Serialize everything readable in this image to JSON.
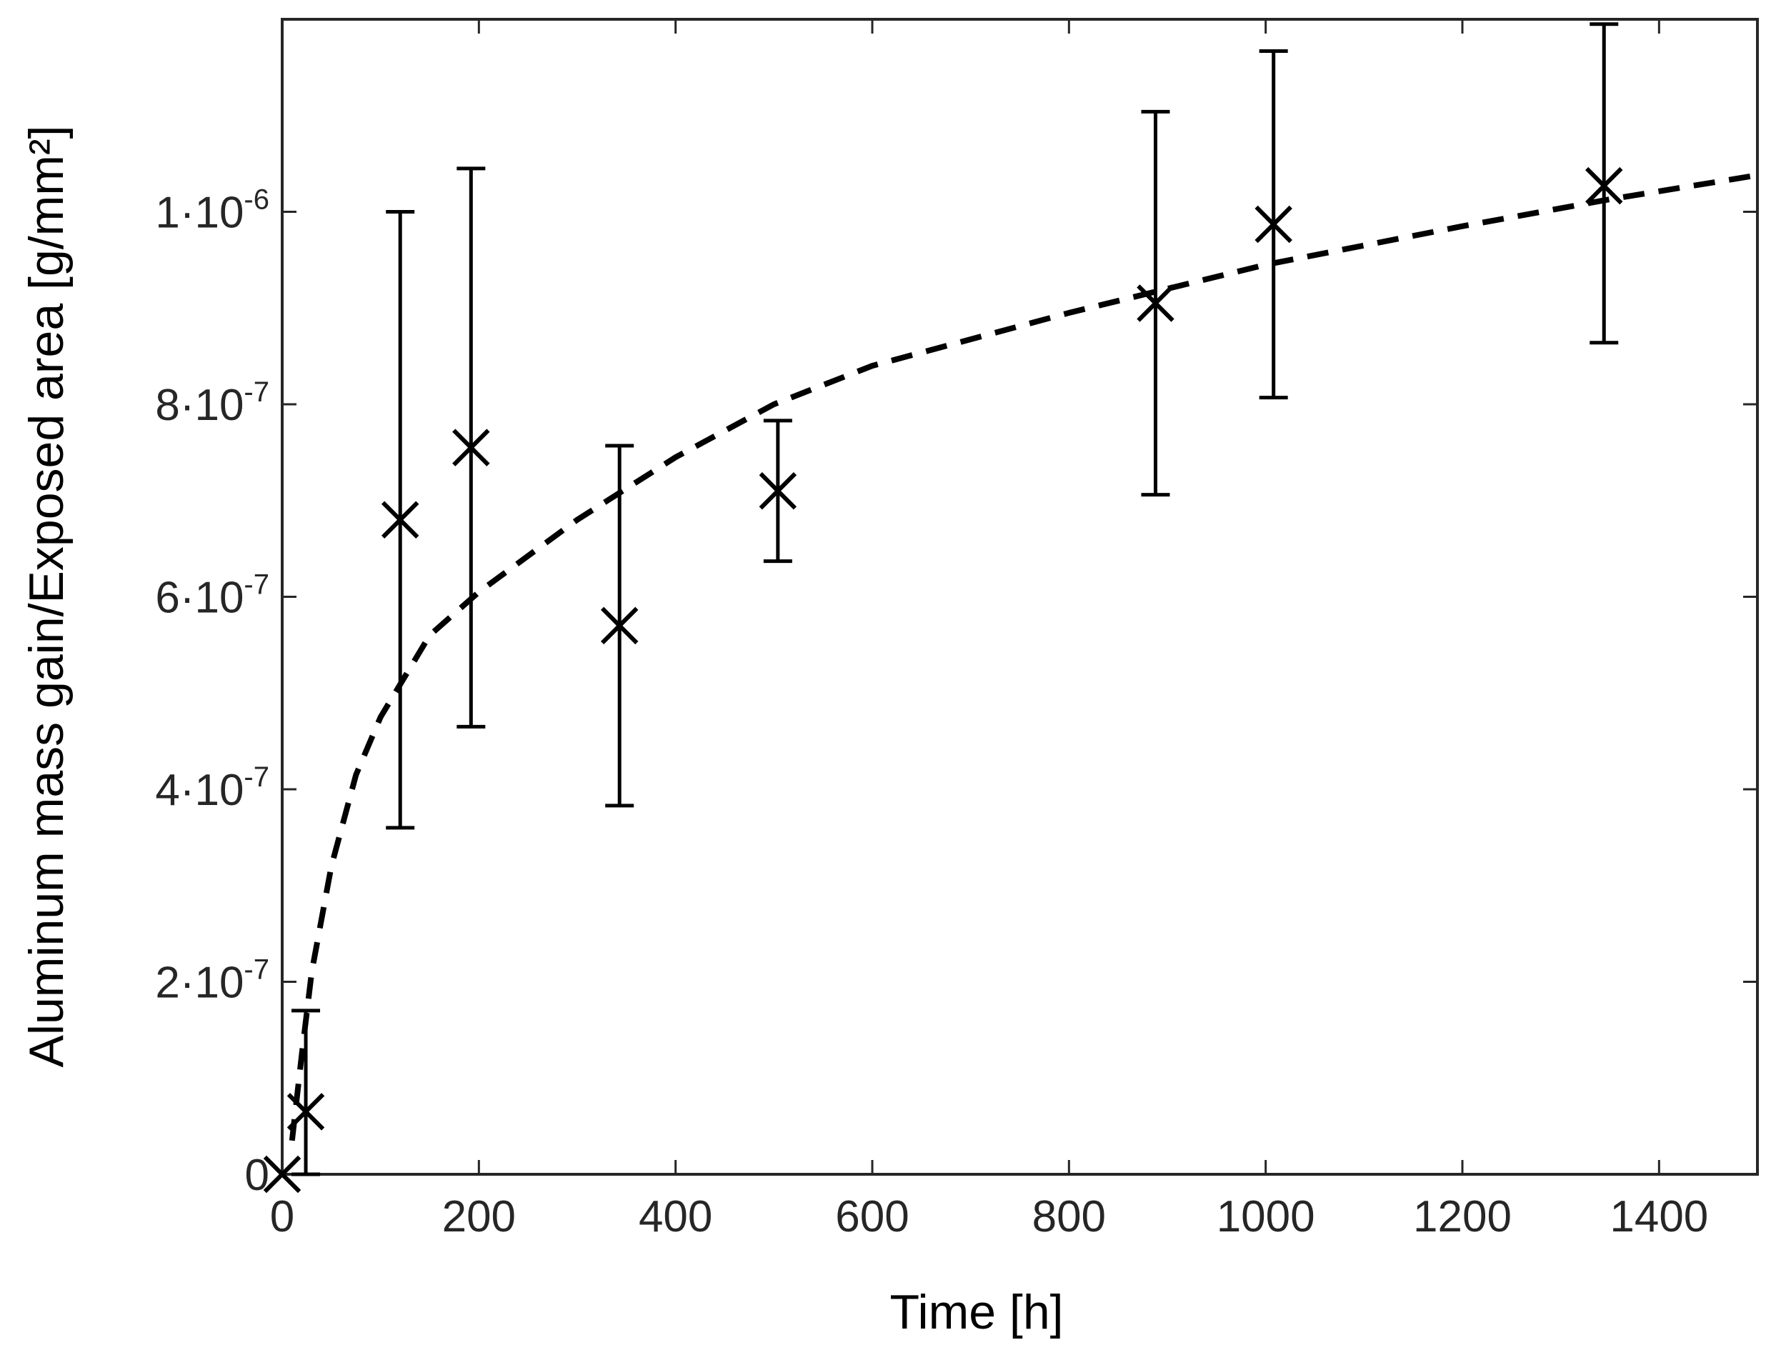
{
  "chart_data": {
    "type": "scatter",
    "xlabel": "Time [h]",
    "ylabel": "Aluminum mass gain/Exposed area [g/mm²]",
    "xlim": [
      0,
      1500
    ],
    "ylim": [
      0,
      1.2e-06
    ],
    "xticks": [
      0,
      200,
      400,
      600,
      800,
      1000,
      1200,
      1400
    ],
    "xtick_labels": [
      "0",
      "200",
      "400",
      "600",
      "800",
      "1000",
      "1200",
      "1400"
    ],
    "yticks": [
      0,
      2e-07,
      4e-07,
      6e-07,
      8e-07,
      1e-06
    ],
    "ytick_labels": [
      {
        "mantissa": "0",
        "exp": ""
      },
      {
        "mantissa": "2·10",
        "exp": "-7"
      },
      {
        "mantissa": "4·10",
        "exp": "-7"
      },
      {
        "mantissa": "6·10",
        "exp": "-7"
      },
      {
        "mantissa": "8·10",
        "exp": "-7"
      },
      {
        "mantissa": "1·10",
        "exp": "-6"
      }
    ],
    "grid": false,
    "series": [
      {
        "marker": "x",
        "color": "#000000",
        "points": [
          {
            "x": 0,
            "y": 0,
            "err_low": null,
            "err_high": null
          },
          {
            "x": 24,
            "y": 6.5e-08,
            "err_low": 0,
            "err_high": 1.7e-07
          },
          {
            "x": 120,
            "y": 6.8e-07,
            "err_low": 3.6e-07,
            "err_high": 1e-06
          },
          {
            "x": 192,
            "y": 7.55e-07,
            "err_low": 4.65e-07,
            "err_high": 1.045e-06
          },
          {
            "x": 343,
            "y": 5.7e-07,
            "err_low": 3.83e-07,
            "err_high": 7.57e-07
          },
          {
            "x": 504,
            "y": 7.1e-07,
            "err_low": 6.37e-07,
            "err_high": 7.83e-07
          },
          {
            "x": 888,
            "y": 9.05e-07,
            "err_low": 7.06e-07,
            "err_high": 1.104e-06
          },
          {
            "x": 1008,
            "y": 9.87e-07,
            "err_low": 8.07e-07,
            "err_high": 1.167e-06
          },
          {
            "x": 1344,
            "y": 1.027e-06,
            "err_low": 8.64e-07,
            "err_high": 1.195e-06
          }
        ]
      },
      {
        "line_style": "dashed",
        "color": "#000000",
        "x": [
          10,
          20,
          30,
          50,
          75,
          100,
          150,
          200,
          300,
          400,
          500,
          600,
          800,
          1000,
          1200,
          1350,
          1500
        ],
        "values": [
          3.5e-08,
          1.25e-07,
          2.1e-07,
          3.2e-07,
          4.15e-07,
          4.75e-07,
          5.6e-07,
          6.05e-07,
          6.8e-07,
          7.45e-07,
          8e-07,
          8.4e-07,
          8.95e-07,
          9.45e-07,
          9.85e-07,
          1.013e-06,
          1.038e-06
        ]
      }
    ]
  }
}
